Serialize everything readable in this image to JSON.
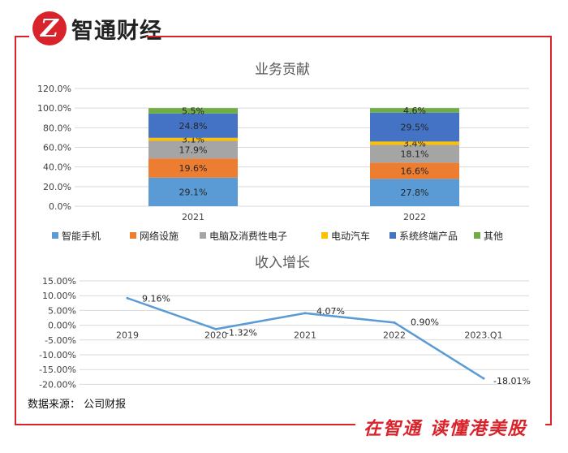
{
  "header": {
    "logo_glyph": "Z",
    "brand": "智通财经"
  },
  "footer": {
    "source": "数据来源：  公司财报",
    "slogan": "在智通  读懂港美股"
  },
  "colors": {
    "brand_red": "#d9232a",
    "phone": "#5b9bd5",
    "network": "#ed7d31",
    "pc": "#a5a5a5",
    "ev": "#ffc000",
    "system": "#4472c4",
    "other": "#70ad47",
    "line": "#5b9bd5"
  },
  "chart_data": [
    {
      "type": "bar",
      "stacked": true,
      "title": "业务贡献",
      "categories": [
        "2021",
        "2022"
      ],
      "ylim": [
        0,
        120
      ],
      "yticks": [
        "0.0%",
        "20.0%",
        "40.0%",
        "60.0%",
        "80.0%",
        "100.0%",
        "120.0%"
      ],
      "grid": true,
      "legend_position": "bottom",
      "series": [
        {
          "name": "智能手机",
          "values": [
            29.1,
            27.8
          ],
          "labels": [
            "29.1%",
            "27.8%"
          ],
          "color": "#5b9bd5"
        },
        {
          "name": "网络设施",
          "values": [
            19.6,
            16.6
          ],
          "labels": [
            "19.6%",
            "16.6%"
          ],
          "color": "#ed7d31"
        },
        {
          "name": "电脑及消费性电子",
          "values": [
            17.9,
            18.1
          ],
          "labels": [
            "17.9%",
            "18.1%"
          ],
          "color": "#a5a5a5"
        },
        {
          "name": "电动汽车",
          "values": [
            3.1,
            3.4
          ],
          "labels": [
            "3.1%",
            "3.4%"
          ],
          "color": "#ffc000"
        },
        {
          "name": "系统终端产品",
          "values": [
            24.8,
            29.5
          ],
          "labels": [
            "24.8%",
            "29.5%"
          ],
          "color": "#4472c4"
        },
        {
          "name": "其他",
          "values": [
            5.5,
            4.6
          ],
          "labels": [
            "5.5%",
            "4.6%"
          ],
          "color": "#70ad47"
        }
      ]
    },
    {
      "type": "line",
      "title": "收入增长",
      "categories": [
        "2019",
        "2020",
        "2021",
        "2022",
        "2023.Q1"
      ],
      "values": [
        9.16,
        -1.32,
        4.07,
        0.9,
        -18.01
      ],
      "labels": [
        "9.16%",
        "-1.32%",
        "4.07%",
        "0.90%",
        "-18.01%"
      ],
      "ylim": [
        -20,
        15
      ],
      "yticks": [
        "15.00%",
        "10.00%",
        "5.00%",
        "0.00%",
        "-5.00%",
        "-10.00%",
        "-15.00%",
        "-20.00%"
      ],
      "grid": true
    }
  ]
}
